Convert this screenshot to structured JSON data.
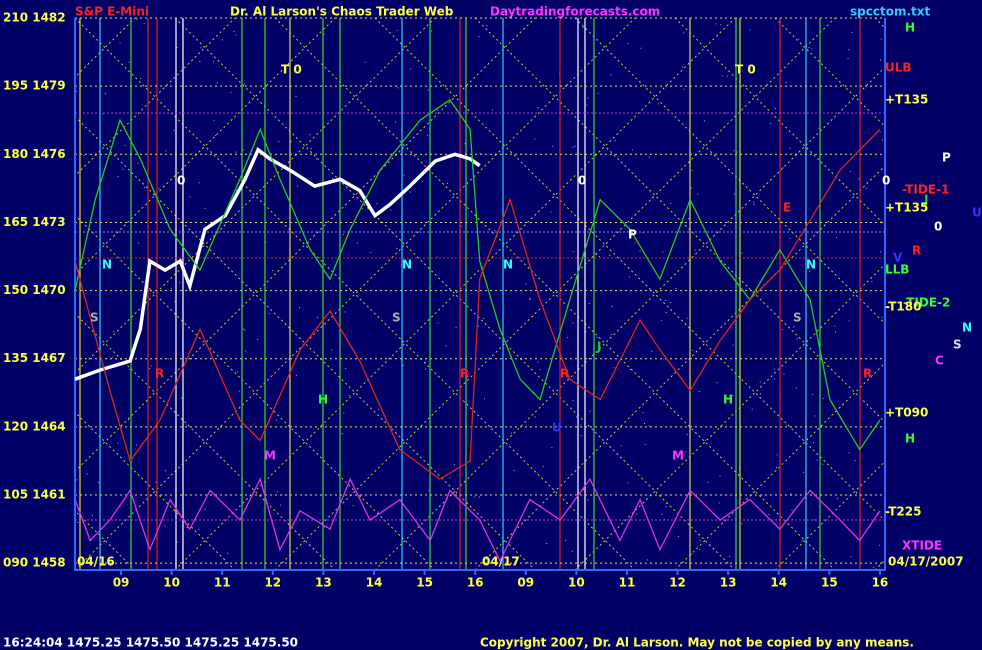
{
  "chart_data": {
    "type": "line",
    "title": "S&P E-Mini",
    "subtitle": "Dr. Al Larson's Chaos Trader Web",
    "site": "Daytradingforecasts.com",
    "file": "spcctom.txt",
    "status": "16:24:04  1475.25 1475.50 1475.25 1475.50",
    "copyright": "Copyright 2007, Dr. Al Larson. May not be copied by any means.",
    "dates": [
      "04/16",
      "04/17",
      "04/17/2007"
    ],
    "xlim": [
      -0.91,
      15.1
    ],
    "xticks": [
      {
        "value": 0,
        "label": "09"
      },
      {
        "value": 1,
        "label": "10"
      },
      {
        "value": 2,
        "label": "11"
      },
      {
        "value": 3,
        "label": "12"
      },
      {
        "value": 4,
        "label": "13"
      },
      {
        "value": 5,
        "label": "14"
      },
      {
        "value": 6,
        "label": "15"
      },
      {
        "value": 7,
        "label": "16"
      },
      {
        "value": 8,
        "label": "09"
      },
      {
        "value": 9,
        "label": "10"
      },
      {
        "value": 10,
        "label": "11"
      },
      {
        "value": 11,
        "label": "12"
      },
      {
        "value": 12,
        "label": "13"
      },
      {
        "value": 13,
        "label": "14"
      },
      {
        "value": 14,
        "label": "15"
      },
      {
        "value": 15,
        "label": "16"
      }
    ],
    "ylim": [
      1457.7,
      1482
    ],
    "yticks": [
      {
        "value": 1458,
        "label": "090 1458"
      },
      {
        "value": 1461,
        "label": "105 1461"
      },
      {
        "value": 1464,
        "label": "120 1464"
      },
      {
        "value": 1467,
        "label": "135 1467"
      },
      {
        "value": 1470,
        "label": "150 1470"
      },
      {
        "value": 1473,
        "label": "165 1473"
      },
      {
        "value": 1476,
        "label": "180 1476"
      },
      {
        "value": 1479,
        "label": "195 1479"
      },
      {
        "value": 1482,
        "label": "210 1482"
      }
    ],
    "grid": true,
    "series": [
      {
        "color": "#ffffff",
        "x": [
          -0.91,
          -0.42,
          0.18,
          0.38,
          0.57,
          0.87,
          1.17,
          1.36,
          1.66,
          2.06,
          2.45,
          2.71,
          2.94,
          3.34,
          3.83,
          4.33,
          4.72,
          5.02,
          5.32,
          5.71,
          6.21,
          6.6,
          6.9,
          7.09
        ],
        "values": [
          1466.1,
          1466.5,
          1466.9,
          1468.3,
          1471.3,
          1470.9,
          1471.3,
          1470.2,
          1472.7,
          1473.3,
          1474.9,
          1476.2,
          1475.8,
          1475.3,
          1474.6,
          1474.9,
          1474.4,
          1473.3,
          1473.8,
          1474.6,
          1475.7,
          1476.0,
          1475.8,
          1475.5
        ]
      },
      {
        "color": "#22cc22",
        "x": [
          -0.91,
          -0.51,
          -0.02,
          0.38,
          0.97,
          1.56,
          2.35,
          2.75,
          3.14,
          3.74,
          4.13,
          4.53,
          5.12,
          5.91,
          6.5,
          6.9,
          7.09,
          7.49,
          7.89,
          8.28,
          8.87,
          9.47,
          10.06,
          10.65,
          11.25,
          11.84,
          12.43,
          13.02,
          13.62,
          14.01,
          14.6,
          15.0
        ],
        "values": [
          1470.0,
          1474.0,
          1477.5,
          1475.8,
          1472.7,
          1470.9,
          1474.9,
          1477.1,
          1474.9,
          1471.8,
          1470.5,
          1472.7,
          1475.3,
          1477.5,
          1478.4,
          1477.1,
          1471.3,
          1468.3,
          1466.1,
          1465.2,
          1469.6,
          1474.0,
          1472.7,
          1470.5,
          1474.0,
          1471.3,
          1469.6,
          1471.8,
          1469.6,
          1465.2,
          1463.0,
          1464.3
        ]
      },
      {
        "color": "#dd2222",
        "x": [
          -0.91,
          -0.22,
          0.18,
          0.77,
          1.56,
          2.35,
          2.75,
          3.54,
          4.13,
          4.72,
          5.51,
          6.3,
          6.9,
          7.09,
          7.69,
          8.28,
          8.87,
          9.47,
          10.26,
          10.65,
          11.25,
          11.84,
          12.43,
          13.02,
          13.62,
          14.21,
          15.0
        ],
        "values": [
          1471.3,
          1465.6,
          1462.5,
          1464.3,
          1468.3,
          1464.3,
          1463.4,
          1467.4,
          1469.1,
          1466.9,
          1463.0,
          1461.7,
          1462.5,
          1470.5,
          1474.0,
          1469.6,
          1466.1,
          1465.2,
          1468.7,
          1467.4,
          1465.6,
          1467.8,
          1469.6,
          1470.9,
          1473.1,
          1475.3,
          1477.1
        ]
      },
      {
        "color": "#dd33dd",
        "x": [
          -0.91,
          -0.61,
          -0.22,
          0.18,
          0.57,
          0.97,
          1.36,
          1.76,
          2.35,
          2.75,
          3.14,
          3.54,
          4.13,
          4.53,
          4.92,
          5.51,
          6.11,
          6.5,
          7.09,
          7.49,
          8.08,
          8.68,
          9.27,
          9.86,
          10.26,
          10.65,
          11.25,
          11.84,
          12.43,
          13.02,
          13.62,
          14.21,
          14.6,
          15.0
        ],
        "values": [
          1460.8,
          1459.0,
          1459.9,
          1461.2,
          1458.6,
          1460.8,
          1459.5,
          1461.2,
          1459.9,
          1461.7,
          1458.6,
          1460.3,
          1459.5,
          1461.7,
          1459.9,
          1460.8,
          1459.0,
          1461.2,
          1459.9,
          1458.1,
          1460.8,
          1459.9,
          1461.7,
          1459.0,
          1460.8,
          1458.6,
          1461.2,
          1459.9,
          1460.8,
          1459.5,
          1461.2,
          1459.9,
          1459.0,
          1460.3
        ]
      }
    ],
    "side_labels": [
      "H",
      "ULB",
      "+T135",
      "P",
      "-TIDE-1",
      "J",
      "+T135",
      "U",
      "0",
      "R",
      "V",
      "LLB",
      "-TIDE-2",
      "-T180",
      "N",
      "S",
      "C",
      "+T090",
      "H",
      "-T225",
      "XTIDE"
    ],
    "annotations": [
      "T 0",
      "T 0",
      "0",
      "0",
      "0",
      "N",
      "N",
      "N",
      "N",
      "S",
      "S",
      "S",
      "P",
      "R",
      "R",
      "R",
      "R",
      "H",
      "H",
      "M",
      "M",
      "J",
      "U",
      "E"
    ]
  }
}
